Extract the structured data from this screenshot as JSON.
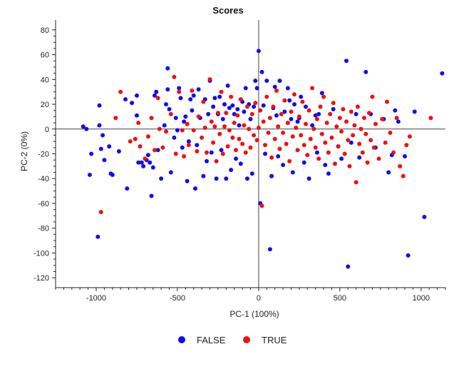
{
  "chart_data": {
    "type": "scatter",
    "title": "Scores",
    "xlabel": "PC-1 (100%)",
    "ylabel": "PC-2 (0%)",
    "xlim": [
      -1250,
      1150
    ],
    "ylim": [
      -128,
      88
    ],
    "xticks": [
      -1000,
      -500,
      0,
      500,
      1000
    ],
    "yticks": [
      80,
      60,
      40,
      20,
      0,
      -20,
      -40,
      -60,
      -80,
      -100,
      -120
    ],
    "grid": false,
    "reference_lines": {
      "x": 0,
      "y": 0
    },
    "legend_position": "bottom-center",
    "series": [
      {
        "name": "FALSE",
        "color": "#1010e8",
        "points": [
          [
            -1080,
            2
          ],
          [
            -1060,
            0
          ],
          [
            -1040,
            -37
          ],
          [
            -1030,
            -20
          ],
          [
            -990,
            -87
          ],
          [
            -980,
            19
          ],
          [
            -980,
            3
          ],
          [
            -970,
            -16
          ],
          [
            -960,
            -5
          ],
          [
            -950,
            -25
          ],
          [
            -920,
            -14
          ],
          [
            -910,
            -36
          ],
          [
            -900,
            -37
          ],
          [
            -860,
            -18
          ],
          [
            -820,
            24
          ],
          [
            -810,
            -48
          ],
          [
            -780,
            21
          ],
          [
            -750,
            27
          ],
          [
            -750,
            11
          ],
          [
            -740,
            -27
          ],
          [
            -720,
            -27
          ],
          [
            -710,
            -30
          ],
          [
            -690,
            -25
          ],
          [
            -680,
            -21
          ],
          [
            -670,
            -27
          ],
          [
            -660,
            -54
          ],
          [
            -650,
            -31
          ],
          [
            -640,
            27
          ],
          [
            -630,
            30
          ],
          [
            -620,
            -17
          ],
          [
            -600,
            -40
          ],
          [
            -580,
            3
          ],
          [
            -570,
            20
          ],
          [
            -560,
            49
          ],
          [
            -560,
            32
          ],
          [
            -550,
            16
          ],
          [
            -540,
            -35
          ],
          [
            -520,
            -7
          ],
          [
            -510,
            9
          ],
          [
            -500,
            -1
          ],
          [
            -490,
            33
          ],
          [
            -480,
            25
          ],
          [
            -470,
            -15
          ],
          [
            -460,
            6
          ],
          [
            -450,
            10
          ],
          [
            -440,
            -42
          ],
          [
            -430,
            -10
          ],
          [
            -420,
            24
          ],
          [
            -410,
            15
          ],
          [
            -400,
            27
          ],
          [
            -390,
            -48
          ],
          [
            -380,
            -13
          ],
          [
            -370,
            32
          ],
          [
            -360,
            9
          ],
          [
            -340,
            -38
          ],
          [
            -330,
            24
          ],
          [
            -320,
            -26
          ],
          [
            -310,
            12
          ],
          [
            -300,
            39
          ],
          [
            -290,
            -19
          ],
          [
            -280,
            18
          ],
          [
            -270,
            25
          ],
          [
            -260,
            -40
          ],
          [
            -250,
            12
          ],
          [
            -240,
            26
          ],
          [
            -230,
            -17
          ],
          [
            -220,
            8
          ],
          [
            -210,
            20
          ],
          [
            -200,
            -40
          ],
          [
            -190,
            35
          ],
          [
            -180,
            17
          ],
          [
            -170,
            -33
          ],
          [
            -160,
            19
          ],
          [
            -150,
            12
          ],
          [
            -140,
            -24
          ],
          [
            -130,
            16
          ],
          [
            -120,
            3
          ],
          [
            -110,
            -28
          ],
          [
            -100,
            22
          ],
          [
            -90,
            14
          ],
          [
            -80,
            33
          ],
          [
            -70,
            -40
          ],
          [
            -60,
            20
          ],
          [
            -50,
            8
          ],
          [
            -40,
            -36
          ],
          [
            -30,
            18
          ],
          [
            -20,
            39
          ],
          [
            -10,
            33
          ],
          [
            0,
            63
          ],
          [
            10,
            -60
          ],
          [
            20,
            46
          ],
          [
            30,
            19
          ],
          [
            40,
            -20
          ],
          [
            50,
            39
          ],
          [
            70,
            -97
          ],
          [
            80,
            -38
          ],
          [
            90,
            17
          ],
          [
            100,
            34
          ],
          [
            110,
            11
          ],
          [
            120,
            -22
          ],
          [
            130,
            39
          ],
          [
            150,
            -29
          ],
          [
            160,
            14
          ],
          [
            180,
            33
          ],
          [
            190,
            23
          ],
          [
            200,
            8
          ],
          [
            210,
            -35
          ],
          [
            220,
            20
          ],
          [
            240,
            6
          ],
          [
            250,
            9
          ],
          [
            260,
            26
          ],
          [
            280,
            -27
          ],
          [
            290,
            18
          ],
          [
            310,
            -40
          ],
          [
            330,
            3
          ],
          [
            350,
            11
          ],
          [
            360,
            -19
          ],
          [
            370,
            12
          ],
          [
            390,
            29
          ],
          [
            410,
            -29
          ],
          [
            430,
            -36
          ],
          [
            460,
            16
          ],
          [
            490,
            -14
          ],
          [
            510,
            -24
          ],
          [
            540,
            55
          ],
          [
            550,
            -111
          ],
          [
            570,
            -11
          ],
          [
            600,
            12
          ],
          [
            620,
            -23
          ],
          [
            660,
            46
          ],
          [
            690,
            12
          ],
          [
            720,
            -15
          ],
          [
            770,
            8
          ],
          [
            800,
            -35
          ],
          [
            820,
            -21
          ],
          [
            840,
            15
          ],
          [
            860,
            6
          ],
          [
            900,
            -22
          ],
          [
            920,
            -102
          ],
          [
            960,
            14
          ],
          [
            1020,
            -71
          ],
          [
            1130,
            45
          ]
        ]
      },
      {
        "name": "TRUE",
        "color": "#ee1111",
        "points": [
          [
            -970,
            -67
          ],
          [
            -880,
            9
          ],
          [
            -850,
            30
          ],
          [
            -790,
            -10
          ],
          [
            -760,
            -8
          ],
          [
            -740,
            5
          ],
          [
            -730,
            -14
          ],
          [
            -700,
            -24
          ],
          [
            -680,
            -6
          ],
          [
            -660,
            9
          ],
          [
            -640,
            -17
          ],
          [
            -620,
            25
          ],
          [
            -610,
            0
          ],
          [
            -590,
            -15
          ],
          [
            -570,
            -2
          ],
          [
            -540,
            12
          ],
          [
            -520,
            42
          ],
          [
            -510,
            -20
          ],
          [
            -490,
            30
          ],
          [
            -470,
            -1
          ],
          [
            -460,
            -22
          ],
          [
            -440,
            4
          ],
          [
            -430,
            -13
          ],
          [
            -410,
            31
          ],
          [
            -400,
            -1
          ],
          [
            -380,
            -18
          ],
          [
            -370,
            10
          ],
          [
            -350,
            -7
          ],
          [
            -340,
            22
          ],
          [
            -330,
            1
          ],
          [
            -320,
            -19
          ],
          [
            -300,
            40
          ],
          [
            -290,
            6
          ],
          [
            -280,
            -11
          ],
          [
            -270,
            2
          ],
          [
            -260,
            -26
          ],
          [
            -250,
            13
          ],
          [
            -240,
            -4
          ],
          [
            -230,
            30
          ],
          [
            -220,
            -20
          ],
          [
            -210,
            2
          ],
          [
            -200,
            13
          ],
          [
            -190,
            -14
          ],
          [
            -180,
            -1
          ],
          [
            -170,
            26
          ],
          [
            -160,
            -7
          ],
          [
            -150,
            5
          ],
          [
            -140,
            -17
          ],
          [
            -130,
            11
          ],
          [
            -120,
            -8
          ],
          [
            -110,
            24
          ],
          [
            -100,
            -12
          ],
          [
            -90,
            3
          ],
          [
            -80,
            -19
          ],
          [
            -70,
            18
          ],
          [
            -60,
            0
          ],
          [
            -50,
            -15
          ],
          [
            -40,
            12
          ],
          [
            -30,
            -5
          ],
          [
            -20,
            21
          ],
          [
            -10,
            -9
          ],
          [
            0,
            1
          ],
          [
            10,
            15
          ],
          [
            20,
            -62
          ],
          [
            30,
            6
          ],
          [
            40,
            -13
          ],
          [
            50,
            26
          ],
          [
            60,
            -3
          ],
          [
            70,
            9
          ],
          [
            80,
            -23
          ],
          [
            90,
            18
          ],
          [
            100,
            -8
          ],
          [
            110,
            31
          ],
          [
            120,
            2
          ],
          [
            130,
            -16
          ],
          [
            140,
            12
          ],
          [
            150,
            -3
          ],
          [
            160,
            23
          ],
          [
            170,
            -12
          ],
          [
            180,
            5
          ],
          [
            190,
            -26
          ],
          [
            200,
            14
          ],
          [
            210,
            -6
          ],
          [
            220,
            28
          ],
          [
            230,
            1
          ],
          [
            240,
            -17
          ],
          [
            250,
            10
          ],
          [
            260,
            -5
          ],
          [
            270,
            22
          ],
          [
            280,
            -13
          ],
          [
            290,
            4
          ],
          [
            300,
            -21
          ],
          [
            310,
            15
          ],
          [
            320,
            -8
          ],
          [
            330,
            33
          ],
          [
            340,
            0
          ],
          [
            350,
            -15
          ],
          [
            360,
            8
          ],
          [
            370,
            -24
          ],
          [
            380,
            18
          ],
          [
            390,
            -4
          ],
          [
            400,
            26
          ],
          [
            410,
            -11
          ],
          [
            420,
            5
          ],
          [
            430,
            -19
          ],
          [
            440,
            12
          ],
          [
            450,
            -7
          ],
          [
            460,
            21
          ],
          [
            470,
            -28
          ],
          [
            480,
            2
          ],
          [
            490,
            -14
          ],
          [
            500,
            9
          ],
          [
            510,
            -2
          ],
          [
            520,
            16
          ],
          [
            530,
            -20
          ],
          [
            540,
            6
          ],
          [
            550,
            -9
          ],
          [
            560,
            -30
          ],
          [
            570,
            14
          ],
          [
            580,
            -5
          ],
          [
            590,
            3
          ],
          [
            600,
            -43
          ],
          [
            610,
            18
          ],
          [
            620,
            -12
          ],
          [
            630,
            0
          ],
          [
            640,
            -19
          ],
          [
            650,
            9
          ],
          [
            660,
            -4
          ],
          [
            670,
            -27
          ],
          [
            680,
            13
          ],
          [
            690,
            -9
          ],
          [
            700,
            26
          ],
          [
            710,
            -15
          ],
          [
            720,
            4
          ],
          [
            740,
            -24
          ],
          [
            760,
            8
          ],
          [
            780,
            -11
          ],
          [
            790,
            22
          ],
          [
            810,
            -3
          ],
          [
            830,
            -19
          ],
          [
            850,
            9
          ],
          [
            870,
            -30
          ],
          [
            890,
            -38
          ],
          [
            910,
            -13
          ],
          [
            930,
            -6
          ],
          [
            1060,
            9
          ]
        ]
      }
    ]
  }
}
